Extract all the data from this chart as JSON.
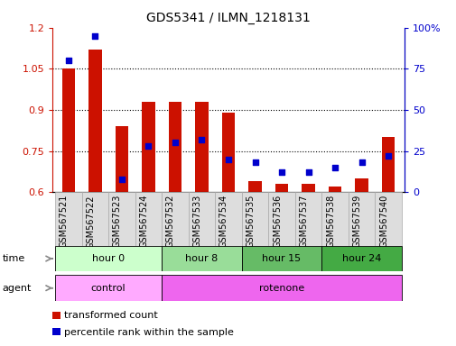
{
  "title": "GDS5341 / ILMN_1218131",
  "samples": [
    "GSM567521",
    "GSM567522",
    "GSM567523",
    "GSM567524",
    "GSM567532",
    "GSM567533",
    "GSM567534",
    "GSM567535",
    "GSM567536",
    "GSM567537",
    "GSM567538",
    "GSM567539",
    "GSM567540"
  ],
  "transformed_count": [
    1.05,
    1.12,
    0.84,
    0.93,
    0.93,
    0.93,
    0.89,
    0.64,
    0.63,
    0.63,
    0.62,
    0.65,
    0.8
  ],
  "percentile_rank": [
    80,
    95,
    8,
    28,
    30,
    32,
    20,
    18,
    12,
    12,
    15,
    18,
    22
  ],
  "ylim_left": [
    0.6,
    1.2
  ],
  "ylim_right": [
    0,
    100
  ],
  "yticks_left": [
    0.6,
    0.75,
    0.9,
    1.05,
    1.2
  ],
  "yticks_right": [
    0,
    25,
    50,
    75,
    100
  ],
  "bar_color": "#cc1100",
  "dot_color": "#0000cc",
  "bar_width": 0.5,
  "xlim": [
    -0.6,
    12.6
  ],
  "time_boundaries": [
    -0.5,
    3.5,
    6.5,
    9.5,
    12.5
  ],
  "time_labels": [
    "hour 0",
    "hour 8",
    "hour 15",
    "hour 24"
  ],
  "time_colors": [
    "#ccffcc",
    "#99dd99",
    "#66bb66",
    "#44aa44"
  ],
  "agent_boundaries": [
    -0.5,
    3.5,
    12.5
  ],
  "agent_labels": [
    "control",
    "rotenone"
  ],
  "agent_colors": [
    "#ffaaff",
    "#ee66ee"
  ],
  "legend_items": [
    {
      "color": "#cc1100",
      "label": "transformed count"
    },
    {
      "color": "#0000cc",
      "label": "percentile rank within the sample"
    }
  ],
  "bg_color": "#ffffff",
  "xtick_bg": "#dddddd",
  "grid_yticks": [
    0.75,
    0.9,
    1.05
  ]
}
